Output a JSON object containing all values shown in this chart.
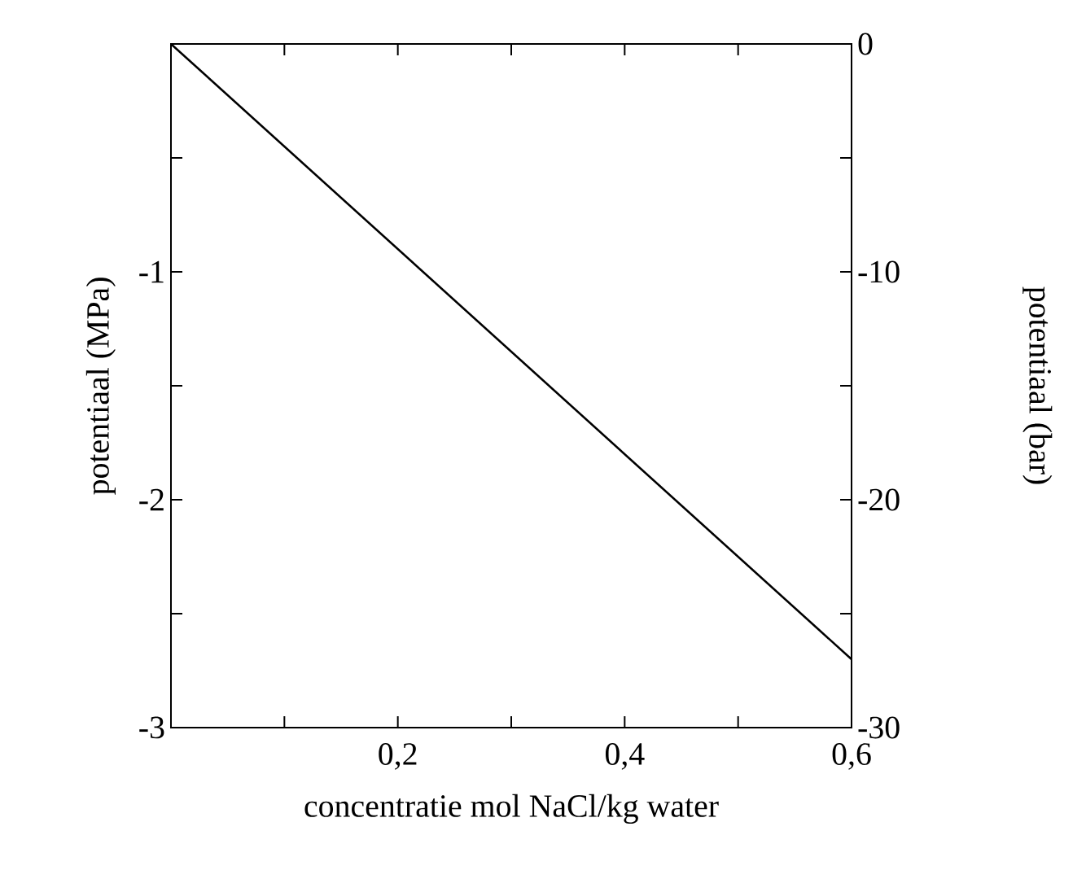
{
  "chart_data": {
    "type": "line",
    "xlabel": "concentratie mol NaCl/kg water",
    "ylabel": "potentiaal (MPa)",
    "y2label": "potentiaal (bar)",
    "x": [
      0,
      0.6
    ],
    "series": [
      {
        "color": "#000000",
        "values": [
          0,
          -2.7
        ]
      }
    ],
    "xlim": [
      0,
      0.6
    ],
    "xticks": [
      {
        "value": 0.1,
        "label": null
      },
      {
        "value": 0.2,
        "label": "0,2"
      },
      {
        "value": 0.3,
        "label": null
      },
      {
        "value": 0.4,
        "label": "0,4"
      },
      {
        "value": 0.5,
        "label": null
      },
      {
        "value": 0.6,
        "label": "0,6"
      }
    ],
    "ylim": [
      -3,
      0
    ],
    "yticks": [
      {
        "value": -3,
        "label": "-3"
      },
      {
        "value": -2.5,
        "label": null
      },
      {
        "value": -2,
        "label": "-2"
      },
      {
        "value": -1.5,
        "label": null
      },
      {
        "value": -1,
        "label": "-1"
      },
      {
        "value": -0.5,
        "label": null
      },
      {
        "value": 0,
        "label": null
      }
    ],
    "y2lim": [
      -30,
      0
    ],
    "y2ticks": [
      {
        "value": -30,
        "label": "-30"
      },
      {
        "value": -25,
        "label": null
      },
      {
        "value": -20,
        "label": "-20"
      },
      {
        "value": -15,
        "label": null
      },
      {
        "value": -10,
        "label": "-10"
      },
      {
        "value": -5,
        "label": null
      },
      {
        "value": 0,
        "label": "0"
      }
    ]
  }
}
